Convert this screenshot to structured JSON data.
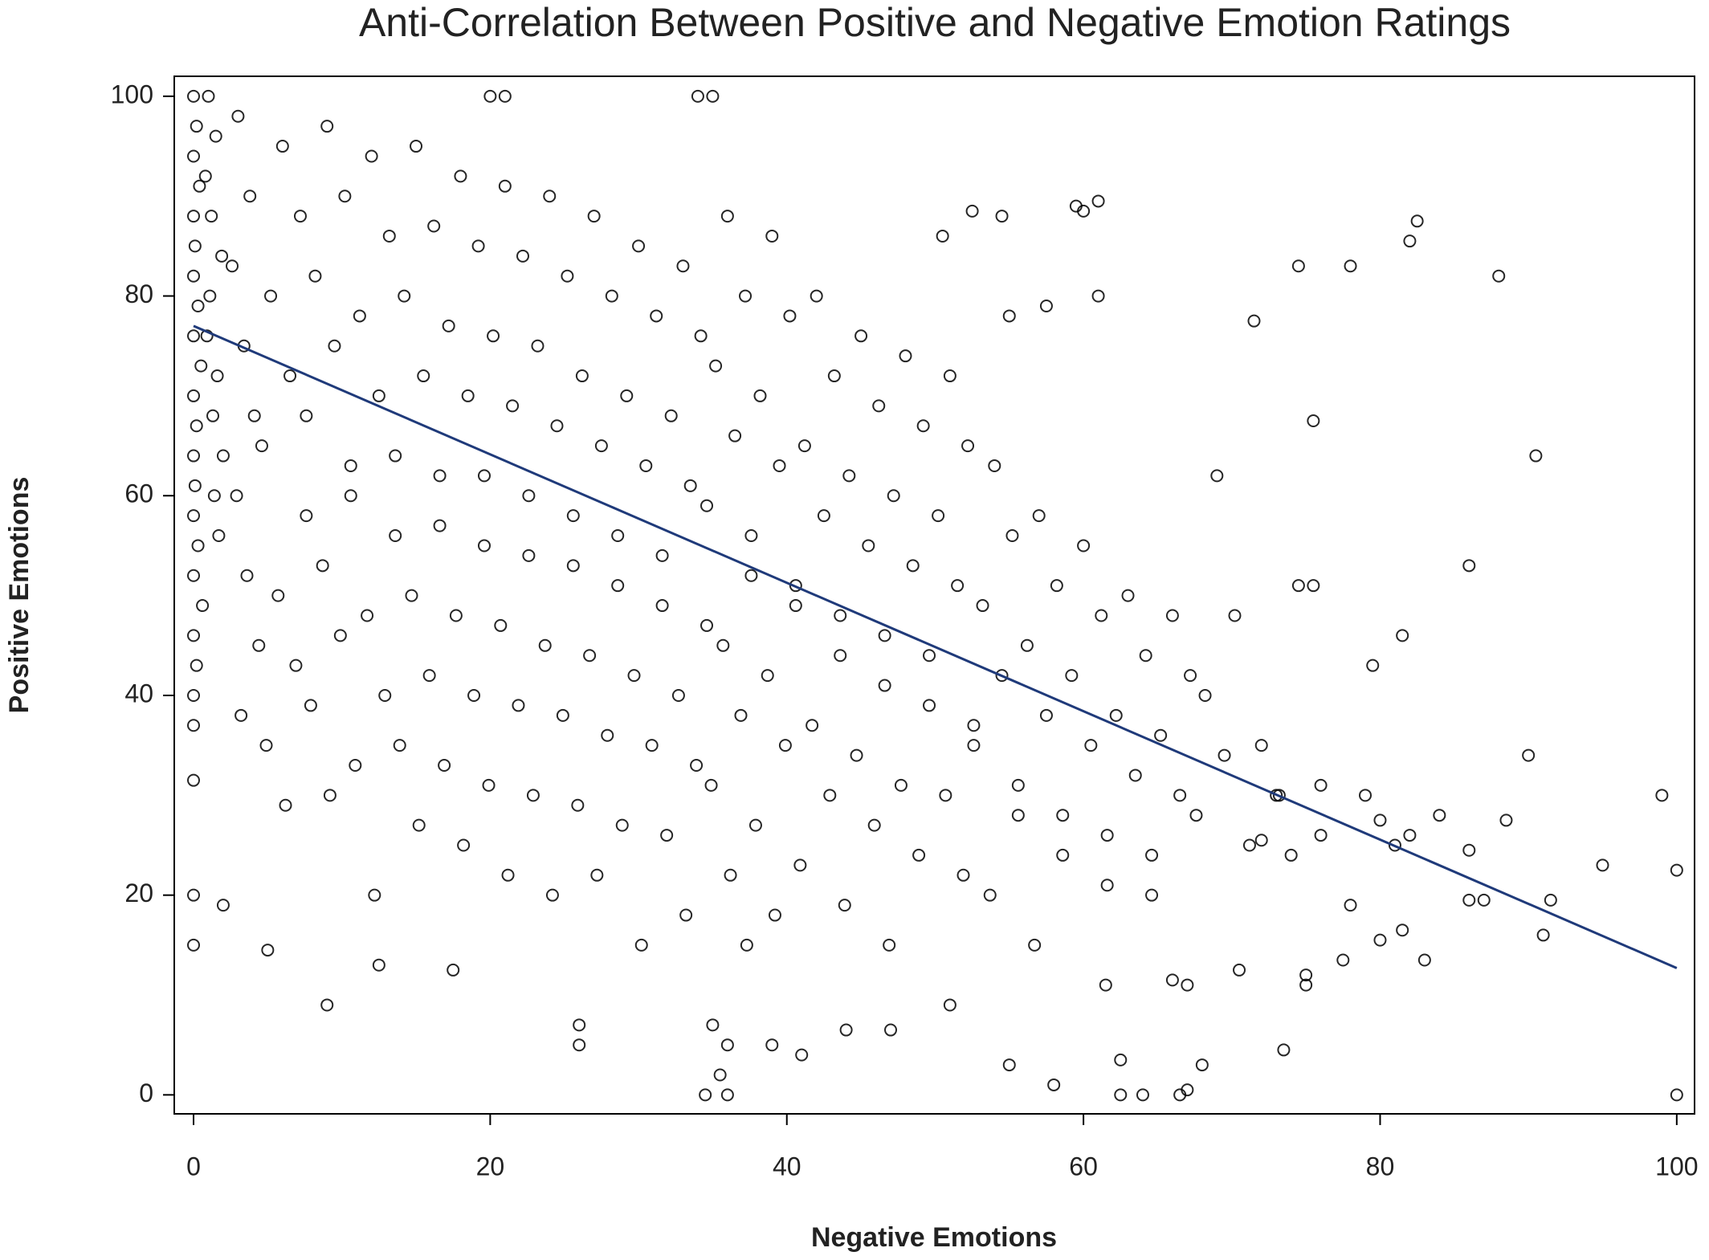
{
  "chart_data": {
    "type": "scatter",
    "title": "Anti-Correlation Between Positive and Negative Emotion Ratings",
    "x_label": "Negative Emotions",
    "y_label": "Positive Emotions",
    "xlim": [
      -1.3,
      101.2
    ],
    "ylim": [
      -1.9,
      102
    ],
    "xticks": [
      0,
      20,
      40,
      60,
      80,
      100
    ],
    "yticks": [
      0,
      20,
      40,
      60,
      80,
      100
    ],
    "series": [
      {
        "type": "scatter",
        "color": "#000000",
        "x": [
          0,
          0.2,
          0,
          0.4,
          0,
          0.1,
          0,
          0.3,
          0,
          0.5,
          0,
          0.2,
          0,
          0.1,
          0,
          0.3,
          0,
          0.6,
          0,
          0.2,
          0,
          0,
          1,
          1.5,
          0.8,
          1.2,
          1.9,
          1.1,
          0.9,
          1.6,
          1.3,
          2.0,
          1.4,
          1.7,
          3,
          3.8,
          2.6,
          3.4,
          4.1,
          2.9,
          3.6,
          4.4,
          3.2,
          6,
          7.2,
          5.2,
          6.5,
          4.6,
          7.6,
          5.7,
          6.9,
          4.9,
          6.2,
          9,
          10.2,
          8.2,
          9.5,
          7.6,
          10.6,
          8.7,
          9.9,
          7.9,
          9.2,
          12,
          13.2,
          11.2,
          12.5,
          10.6,
          13.6,
          11.7,
          12.9,
          10.9,
          12.2,
          15,
          16.2,
          14.2,
          15.5,
          13.6,
          16.6,
          14.7,
          15.9,
          13.9,
          15.2,
          18,
          19.2,
          17.2,
          18.5,
          16.6,
          19.6,
          17.7,
          18.9,
          16.9,
          18.2,
          21,
          22.2,
          20.2,
          21.5,
          19.6,
          22.6,
          20.7,
          21.9,
          19.9,
          21.2,
          24,
          25.2,
          23.2,
          24.5,
          22.6,
          25.6,
          23.7,
          24.9,
          22.9,
          24.2,
          27,
          28.2,
          26.2,
          27.5,
          25.6,
          28.6,
          26.7,
          27.9,
          25.9,
          27.2,
          30,
          31.2,
          29.2,
          30.5,
          28.6,
          31.6,
          29.7,
          30.9,
          28.9,
          30.2,
          33,
          34.2,
          32.2,
          33.5,
          31.6,
          34.6,
          32.7,
          33.9,
          31.9,
          33.2,
          36,
          37.2,
          35.2,
          36.5,
          34.6,
          37.6,
          35.7,
          36.9,
          34.9,
          36.2,
          37.3,
          39,
          40.2,
          38.2,
          39.5,
          37.6,
          40.6,
          38.7,
          39.9,
          37.9,
          39.2,
          42,
          43.2,
          41.2,
          42.5,
          40.6,
          43.6,
          41.7,
          42.9,
          40.9,
          45,
          46.2,
          44.2,
          45.5,
          43.6,
          46.6,
          44.7,
          45.9,
          43.9,
          48,
          49.2,
          47.2,
          48.5,
          46.6,
          49.6,
          47.7,
          48.9,
          46.9,
          51,
          52.2,
          50.2,
          51.5,
          49.6,
          52.6,
          50.7,
          51.9,
          54,
          55.2,
          53.2,
          54.5,
          52.6,
          55.6,
          53.7,
          57,
          58.2,
          56.2,
          57.5,
          55.6,
          58.6,
          56.7,
          60,
          61.2,
          59.2,
          60.5,
          58.6,
          61.6,
          63,
          64.2,
          62.2,
          63.5,
          61.6,
          64.6,
          66,
          67.2,
          65.2,
          66.5,
          64.6,
          69,
          70.2,
          68.2,
          69.5,
          67.6,
          72,
          73.2,
          71.2,
          34,
          35,
          20,
          21,
          88,
          82.5,
          82,
          90.5,
          86,
          100,
          100,
          99,
          95,
          91.5,
          91,
          90,
          81.5,
          79.5,
          78,
          74.5,
          71.5,
          75.5,
          74.5,
          75.5,
          61,
          59.5,
          60,
          52.5,
          54.5,
          50.5,
          55,
          57.5,
          61,
          9,
          17.5,
          12.5,
          0,
          0,
          0,
          2,
          5,
          36,
          34.5,
          35.5,
          55,
          58,
          62.5,
          64,
          66.5,
          67,
          68,
          73.5,
          62.5,
          26,
          26,
          35,
          36,
          39,
          41,
          44,
          47,
          51,
          61.5,
          66,
          67,
          70.5,
          75,
          75,
          77.5,
          80,
          83,
          81.5,
          78,
          86,
          87,
          88.5,
          86,
          84,
          82,
          80,
          76,
          73,
          72,
          74,
          76,
          79,
          81
        ],
        "values": [
          100,
          97,
          94,
          91,
          88,
          85,
          82,
          79,
          76,
          73,
          70,
          67,
          64,
          61,
          58,
          55,
          52,
          49,
          46,
          43,
          40,
          37,
          100,
          96,
          92,
          88,
          84,
          80,
          76,
          72,
          68,
          64,
          60,
          56,
          98,
          90,
          83,
          75,
          68,
          60,
          52,
          45,
          38,
          95,
          88,
          80,
          72,
          65,
          58,
          50,
          43,
          35,
          29,
          97,
          90,
          82,
          75,
          68,
          60,
          53,
          46,
          39,
          30,
          94,
          86,
          78,
          70,
          63,
          56,
          48,
          40,
          33,
          20,
          95,
          87,
          80,
          72,
          64,
          57,
          50,
          42,
          35,
          27,
          92,
          85,
          77,
          70,
          62,
          55,
          48,
          40,
          33,
          25,
          91,
          84,
          76,
          69,
          62,
          54,
          47,
          39,
          31,
          22,
          90,
          82,
          75,
          67,
          60,
          53,
          45,
          38,
          30,
          20,
          88,
          80,
          72,
          65,
          58,
          51,
          44,
          36,
          29,
          22,
          85,
          78,
          70,
          63,
          56,
          49,
          42,
          35,
          27,
          15,
          83,
          76,
          68,
          61,
          54,
          47,
          40,
          33,
          26,
          18,
          88,
          80,
          73,
          66,
          59,
          52,
          45,
          38,
          31,
          22,
          15,
          86,
          78,
          70,
          63,
          56,
          49,
          42,
          35,
          27,
          18,
          80,
          72,
          65,
          58,
          51,
          44,
          37,
          30,
          23,
          76,
          69,
          62,
          55,
          48,
          41,
          34,
          27,
          19,
          74,
          67,
          60,
          53,
          46,
          39,
          31,
          24,
          15,
          72,
          65,
          58,
          51,
          44,
          37,
          30,
          22,
          63,
          56,
          49,
          42,
          35,
          28,
          20,
          58,
          51,
          45,
          38,
          31,
          24,
          15,
          55,
          48,
          42,
          35,
          28,
          21,
          50,
          44,
          38,
          32,
          26,
          20,
          48,
          42,
          36,
          30,
          24,
          62,
          48,
          40,
          34,
          28,
          35,
          30,
          25,
          100,
          100,
          100,
          100,
          82,
          87.5,
          85.5,
          64,
          53,
          22.5,
          0,
          30,
          23,
          19.5,
          16,
          34,
          46,
          43,
          83,
          83,
          77.5,
          67.5,
          51,
          51,
          89.5,
          89,
          88.5,
          88.5,
          88,
          86,
          78,
          79,
          80,
          9,
          12.5,
          13,
          15,
          20,
          31.5,
          19,
          14.5,
          0,
          0,
          2,
          3,
          1,
          0,
          0,
          0,
          0.5,
          3,
          4.5,
          3.5,
          7,
          5,
          7,
          5,
          5,
          4,
          6.5,
          6.5,
          9,
          11,
          11.5,
          11,
          12.5,
          12,
          11,
          13.5,
          15.5,
          13.5,
          16.5,
          19,
          19.5,
          19.5,
          27.5,
          24.5,
          28,
          26,
          27.5,
          26,
          30,
          25.5,
          24,
          31,
          30,
          25
        ]
      },
      {
        "type": "line",
        "color": "#1f3a7a",
        "x": [
          0,
          100
        ],
        "values": [
          77,
          12.7
        ]
      }
    ]
  }
}
